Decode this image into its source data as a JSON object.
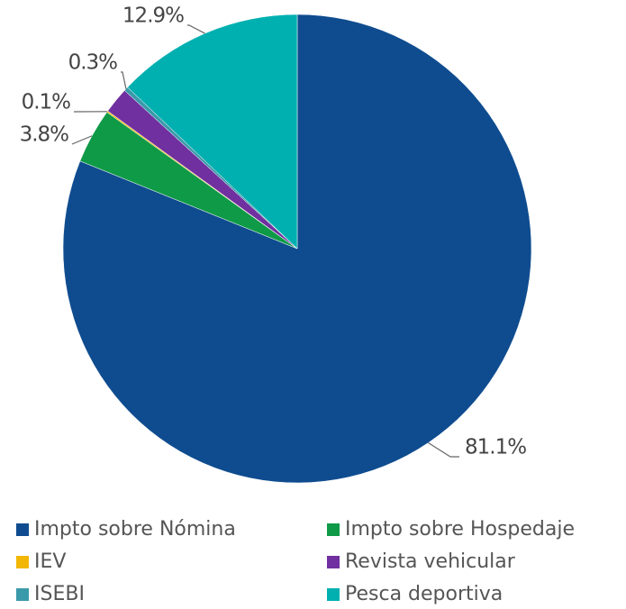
{
  "chart_data": {
    "type": "pie",
    "categories": [
      "Impto sobre Nómina",
      "Impto sobre Hospedaje",
      "IEV",
      "Revista vehicular",
      "ISEBI",
      "Pesca deportiva"
    ],
    "values": [
      81.1,
      3.8,
      0.1,
      1.8,
      0.3,
      12.9
    ],
    "value_labels": [
      "81.1%",
      "3.8%",
      "0.1%",
      null,
      "0.3%",
      "12.9%"
    ],
    "colors": [
      "#0f4c8f",
      "#0f9a48",
      "#f2b705",
      "#7030a0",
      "#3a9aaa",
      "#00b0b0"
    ],
    "legend": "bottom"
  }
}
